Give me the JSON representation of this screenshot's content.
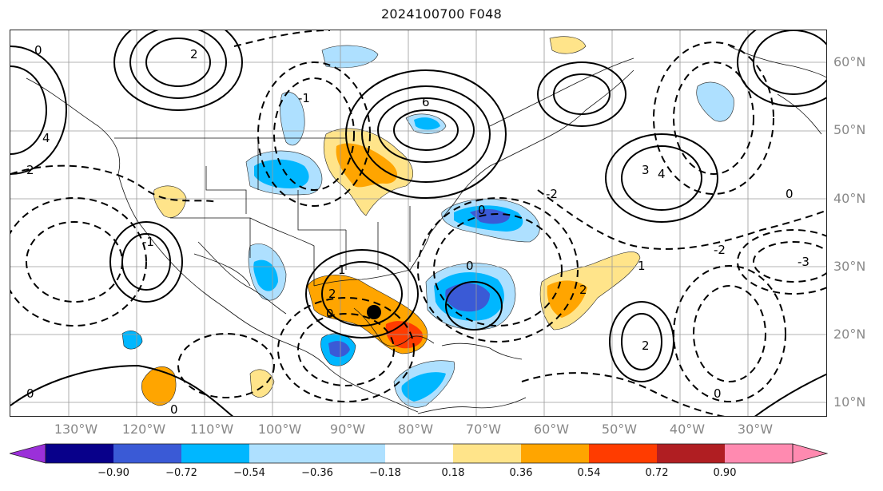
{
  "title": "2024100700 F048",
  "lat_labels": [
    "60°N",
    "50°N",
    "40°N",
    "30°N",
    "20°N",
    "10°N"
  ],
  "lon_labels": [
    "130°W",
    "120°W",
    "110°W",
    "100°W",
    "90°W",
    "80°W",
    "70°W",
    "60°W",
    "50°W",
    "40°W",
    "30°W"
  ],
  "colorbar": {
    "ticks": [
      "−0.90",
      "−0.72",
      "−0.54",
      "−0.36",
      "−0.18",
      "0.18",
      "0.36",
      "0.54",
      "0.72",
      "0.90"
    ],
    "colors": [
      "#9b30d9",
      "#08008a",
      "#3a5ad6",
      "#00b7ff",
      "#aee0ff",
      "#ffffff",
      "#ffe48a",
      "#ffa500",
      "#ff3c00",
      "#b01e22",
      "#ff8ab0"
    ]
  },
  "contour_labels": [
    "0",
    "2",
    "4",
    "6",
    "-1",
    "-2",
    "-3",
    "1",
    "3"
  ],
  "marker": "storm-center-dot"
}
